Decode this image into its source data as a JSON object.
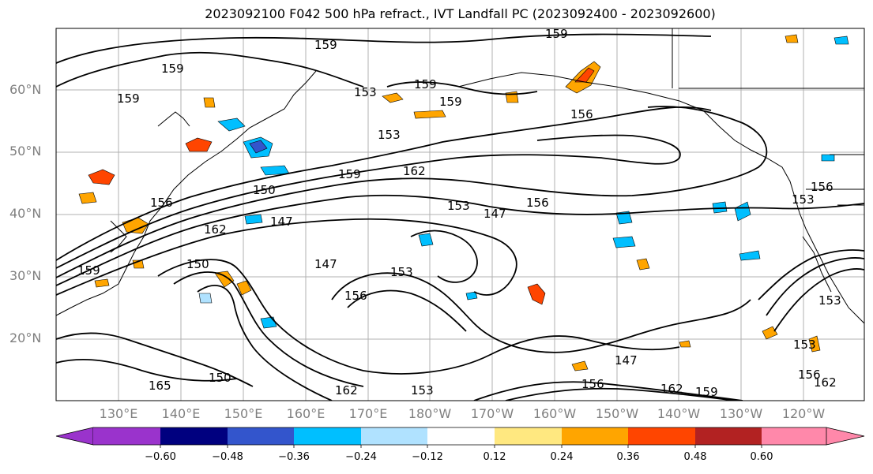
{
  "title": "2023092100 F042 500 hPa refract., IVT Landfall PC (2023092400 - 2023092600)",
  "lat_labels": [
    "60°N",
    "50°N",
    "40°N",
    "30°N",
    "20°N"
  ],
  "lon_labels": [
    "130°E",
    "140°E",
    "150°E",
    "160°E",
    "170°E",
    "180°W",
    "170°W",
    "160°W",
    "150°W",
    "140°W",
    "130°W",
    "120°W"
  ],
  "colorbar": {
    "ticks": [
      "−0.60",
      "−0.48",
      "−0.36",
      "−0.24",
      "−0.12",
      "0.12",
      "0.24",
      "0.36",
      "0.48",
      "0.60"
    ],
    "colors": [
      "#9a33cc",
      "#00007f",
      "#3355cc",
      "#00bfff",
      "#b0e2ff",
      "#ffffff",
      "#ffe880",
      "#ffa500",
      "#ff4500",
      "#b22222",
      "#ff88aa"
    ]
  },
  "contour_labels": [
    "159",
    "159",
    "159",
    "159",
    "159",
    "159",
    "156",
    "156",
    "156",
    "153",
    "153",
    "153",
    "153",
    "150",
    "150",
    "147",
    "147",
    "147",
    "162",
    "162",
    "162",
    "165",
    "159",
    "156",
    "153",
    "150",
    "147",
    "156",
    "162",
    "159",
    "159",
    "153",
    "156",
    "153",
    "153",
    "156",
    "162"
  ]
}
